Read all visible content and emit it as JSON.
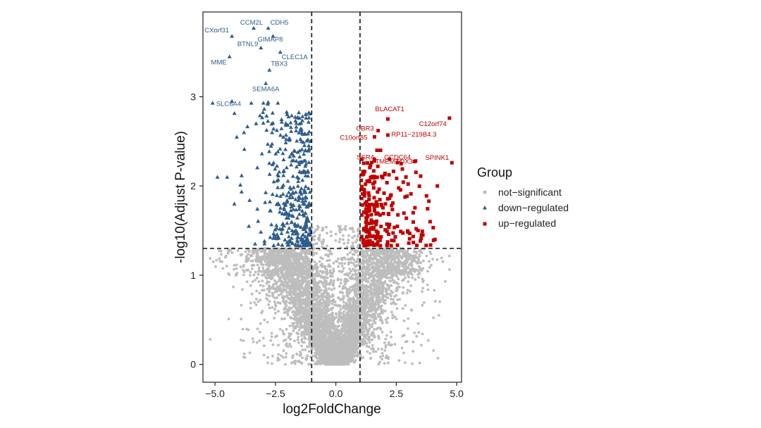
{
  "chart_data": {
    "type": "scatter",
    "title": "",
    "xlabel": "log2FoldChange",
    "ylabel": "-log10(Adjust P-value)",
    "xlim": [
      -5.5,
      5.2
    ],
    "ylim": [
      -0.2,
      3.95
    ],
    "xticks": [
      -5.0,
      -2.5,
      0.0,
      2.5,
      5.0
    ],
    "xtick_labels": [
      "−5.0",
      "−2.5",
      "0.0",
      "2.5",
      "5.0"
    ],
    "yticks": [
      0,
      1,
      2,
      3
    ],
    "ytick_labels": [
      "0",
      "1",
      "2",
      "3"
    ],
    "thresholds": {
      "log2fc": [
        -1,
        1
      ],
      "neg_log10_p": 1.3
    },
    "legend": {
      "title": "Group",
      "position": "right",
      "entries": [
        {
          "label": "not−significant",
          "color": "#bdbdbd",
          "shape": "circle"
        },
        {
          "label": "down−regulated",
          "color": "#2f5d8c",
          "shape": "triangle"
        },
        {
          "label": "up−regulated",
          "color": "#c00000",
          "shape": "square"
        }
      ]
    },
    "series": [
      {
        "name": "not-significant",
        "color": "#bdbdbd",
        "shape": "circle",
        "count_estimate": 6000
      },
      {
        "name": "down-regulated",
        "color": "#2f5d8c",
        "shape": "triangle",
        "labeled_points": [
          {
            "gene": "CCM2L",
            "x": -3.4,
            "y": 3.77
          },
          {
            "gene": "CDH5",
            "x": -2.8,
            "y": 3.77
          },
          {
            "gene": "CXorf31",
            "x": -4.3,
            "y": 3.68
          },
          {
            "gene": "GIMAP8",
            "x": -2.6,
            "y": 3.68
          },
          {
            "gene": "BTNL9",
            "x": -3.1,
            "y": 3.55
          },
          {
            "gene": "CLEC1A",
            "x": -2.3,
            "y": 3.5
          },
          {
            "gene": "MME",
            "x": -4.4,
            "y": 3.45
          },
          {
            "gene": "TBX3",
            "x": -2.75,
            "y": 3.3
          },
          {
            "gene": "SEMA6A",
            "x": -2.9,
            "y": 3.15
          },
          {
            "gene": "SLC6A4",
            "x": -5.1,
            "y": 2.93
          }
        ]
      },
      {
        "name": "up-regulated",
        "color": "#c00000",
        "shape": "square",
        "labeled_points": [
          {
            "gene": "BLACAT1",
            "x": 2.15,
            "y": 2.75
          },
          {
            "gene": "C12orf74",
            "x": 4.7,
            "y": 2.76
          },
          {
            "gene": "CBR3",
            "x": 1.75,
            "y": 2.62
          },
          {
            "gene": "C10orf85",
            "x": 1.6,
            "y": 2.55
          },
          {
            "gene": "RP11−219B4.3",
            "x": 2.15,
            "y": 2.57
          },
          {
            "gene": "SSR4",
            "x": 1.7,
            "y": 2.4
          },
          {
            "gene": "CCDC64",
            "x": 1.85,
            "y": 2.4
          },
          {
            "gene": "TMEM74",
            "x": 1.6,
            "y": 2.28
          },
          {
            "gene": "TOX3",
            "x": 3.3,
            "y": 2.28
          },
          {
            "gene": "SPINK1",
            "x": 4.8,
            "y": 2.26
          }
        ]
      }
    ]
  }
}
